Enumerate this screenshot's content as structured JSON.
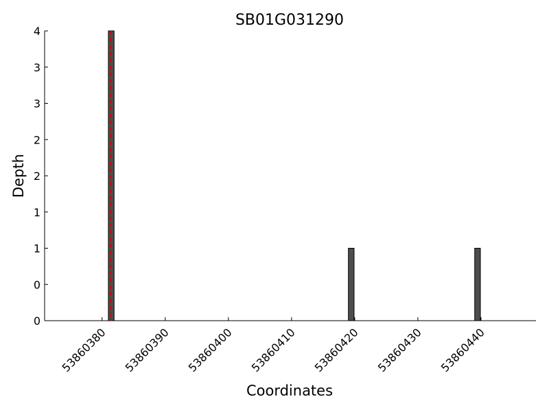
{
  "chart_data": {
    "type": "bar",
    "title": "SB01G031290",
    "x_label": "Coordinates",
    "y_label": "Depth",
    "x": [
      53860381,
      53860419,
      53860439
    ],
    "values": [
      4,
      1,
      1
    ],
    "color": "#4d4d4d",
    "xlim": [
      53860370.9,
      53860448.7
    ],
    "xticks": [
      53860380,
      53860390,
      53860400,
      53860410,
      53860420,
      53860430,
      53860440
    ],
    "ylim": [
      0,
      4
    ],
    "yticks": [
      0,
      {
        "value": 0.5,
        "label": "0"
      },
      1,
      {
        "value": 1.5,
        "label": "1"
      },
      2,
      {
        "value": 2.5,
        "label": "2"
      },
      3,
      {
        "value": 3.5,
        "label": "3"
      },
      4
    ],
    "reference_line": {
      "x": 53860381.4,
      "color": "#e00000"
    }
  }
}
